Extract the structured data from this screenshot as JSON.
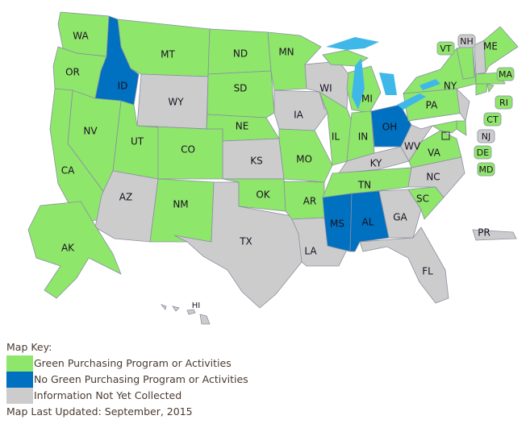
{
  "colors": {
    "green": "#8ee66b",
    "blue": "#0070c0",
    "gray": "#cccccc",
    "lake": "#3fb8e8"
  },
  "states": [
    {
      "code": "WA",
      "status": "green"
    },
    {
      "code": "OR",
      "status": "green"
    },
    {
      "code": "ID",
      "status": "blue"
    },
    {
      "code": "MT",
      "status": "green"
    },
    {
      "code": "WY",
      "status": "gray"
    },
    {
      "code": "ND",
      "status": "green"
    },
    {
      "code": "SD",
      "status": "green"
    },
    {
      "code": "NE",
      "status": "green"
    },
    {
      "code": "KS",
      "status": "gray"
    },
    {
      "code": "CO",
      "status": "green"
    },
    {
      "code": "UT",
      "status": "green"
    },
    {
      "code": "NV",
      "status": "green"
    },
    {
      "code": "CA",
      "status": "green"
    },
    {
      "code": "AZ",
      "status": "gray"
    },
    {
      "code": "NM",
      "status": "green"
    },
    {
      "code": "TX",
      "status": "gray"
    },
    {
      "code": "OK",
      "status": "green"
    },
    {
      "code": "MN",
      "status": "green"
    },
    {
      "code": "IA",
      "status": "gray"
    },
    {
      "code": "MO",
      "status": "green"
    },
    {
      "code": "AR",
      "status": "green"
    },
    {
      "code": "LA",
      "status": "gray"
    },
    {
      "code": "WI",
      "status": "gray"
    },
    {
      "code": "IL",
      "status": "green"
    },
    {
      "code": "MI",
      "status": "green"
    },
    {
      "code": "IN",
      "status": "green"
    },
    {
      "code": "OH",
      "status": "blue"
    },
    {
      "code": "KY",
      "status": "gray"
    },
    {
      "code": "TN",
      "status": "green"
    },
    {
      "code": "MS",
      "status": "blue"
    },
    {
      "code": "AL",
      "status": "blue"
    },
    {
      "code": "GA",
      "status": "gray"
    },
    {
      "code": "FL",
      "status": "gray"
    },
    {
      "code": "SC",
      "status": "green"
    },
    {
      "code": "NC",
      "status": "gray"
    },
    {
      "code": "VA",
      "status": "green"
    },
    {
      "code": "WV",
      "status": "gray"
    },
    {
      "code": "PA",
      "status": "green"
    },
    {
      "code": "NY",
      "status": "green"
    },
    {
      "code": "NJ",
      "status": "gray"
    },
    {
      "code": "DE",
      "status": "green"
    },
    {
      "code": "MD",
      "status": "green"
    },
    {
      "code": "VT",
      "status": "green"
    },
    {
      "code": "NH",
      "status": "gray"
    },
    {
      "code": "ME",
      "status": "green"
    },
    {
      "code": "MA",
      "status": "green"
    },
    {
      "code": "CT",
      "status": "green"
    },
    {
      "code": "RI",
      "status": "green"
    },
    {
      "code": "AK",
      "status": "green"
    },
    {
      "code": "HI",
      "status": "gray"
    },
    {
      "code": "PR",
      "status": "gray"
    }
  ],
  "legend": {
    "title": "Map Key:",
    "items": [
      {
        "label": "Green Purchasing Program or Activities",
        "status": "green"
      },
      {
        "label": "No Green Purchasing Program or Activities",
        "status": "blue"
      },
      {
        "label": "Information Not Yet Collected",
        "status": "gray"
      }
    ],
    "updated": "Map Last Updated: September, 2015"
  }
}
